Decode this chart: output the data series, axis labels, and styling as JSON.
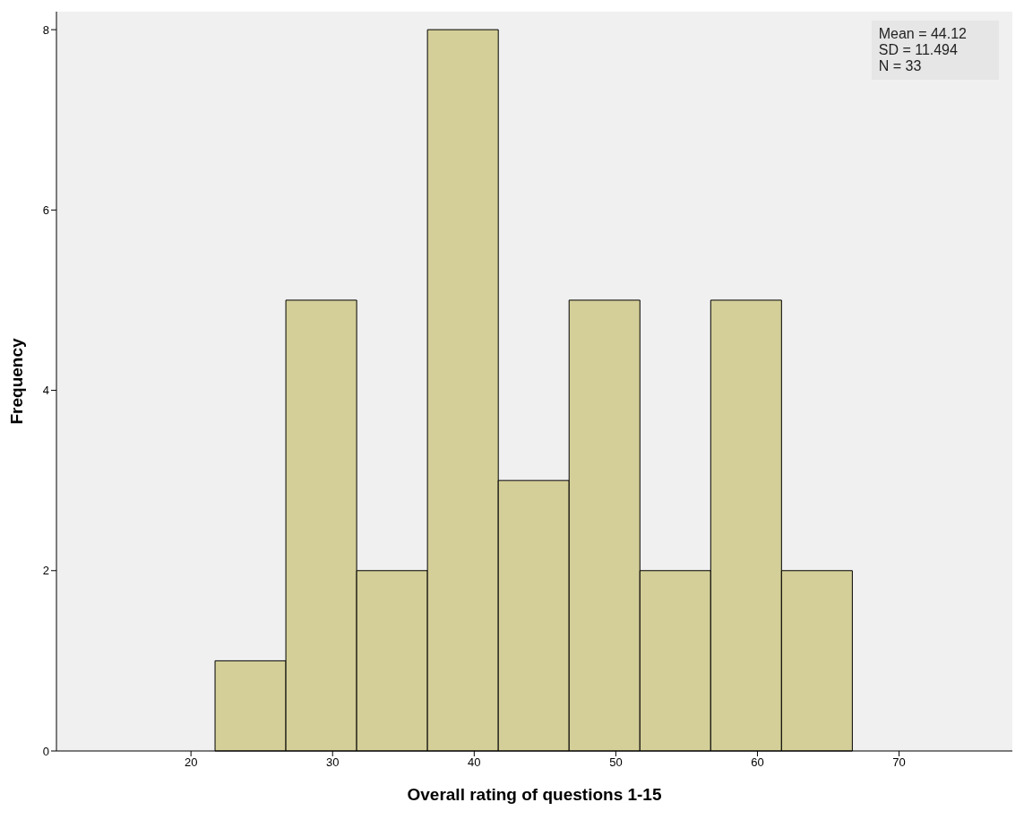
{
  "chart_data": {
    "type": "histogram",
    "xlabel": "Overall rating of questions 1-15",
    "ylabel": "Frequency",
    "bins": [
      21.7,
      26.7,
      31.7,
      36.7,
      41.7,
      46.7,
      51.7,
      56.7,
      61.7,
      66.7
    ],
    "values": [
      1,
      5,
      2,
      8,
      3,
      5,
      2,
      5,
      2
    ],
    "color": "#d4cf98",
    "xlim": [
      10.5,
      78
    ],
    "xticks": [
      20,
      30,
      40,
      50,
      60,
      70
    ],
    "ylim": [
      0,
      8.2
    ],
    "yticks": [
      0,
      2,
      4,
      6,
      8
    ],
    "grid": false,
    "annotations": [
      "Mean = 44.12",
      "SD = 11.494",
      "N = 33"
    ]
  }
}
